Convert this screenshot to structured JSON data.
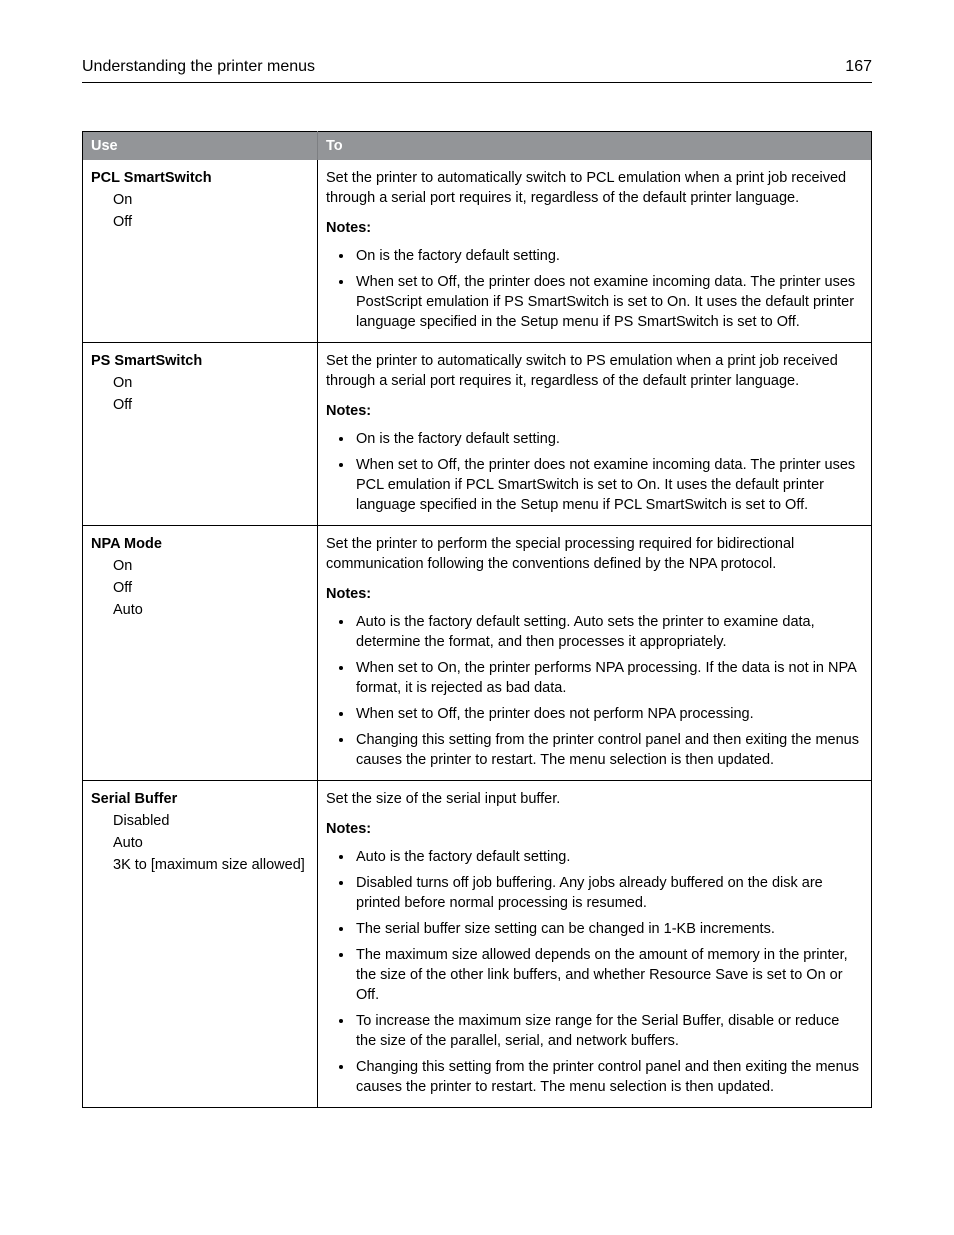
{
  "header": {
    "title": "Understanding the printer menus",
    "page_number": "167"
  },
  "table": {
    "columns": {
      "use": "Use",
      "to": "To"
    },
    "rows": [
      {
        "title": "PCL SmartSwitch",
        "options": [
          "On",
          "Off"
        ],
        "description": "Set the printer to automatically switch to PCL emulation when a print job received through a serial port requires it, regardless of the default printer language.",
        "notes_label": "Notes:",
        "notes": [
          "On is the factory default setting.",
          "When set to Off, the printer does not examine incoming data. The printer uses PostScript emulation if PS SmartSwitch is set to On. It uses the default printer language specified in the Setup menu if PS SmartSwitch is set to Off."
        ]
      },
      {
        "title": "PS SmartSwitch",
        "options": [
          "On",
          "Off"
        ],
        "description": "Set the printer to automatically switch to PS emulation when a print job received through a serial port requires it, regardless of the default printer language.",
        "notes_label": "Notes:",
        "notes": [
          "On is the factory default setting.",
          "When set to Off, the printer does not examine incoming data. The printer uses PCL emulation if PCL SmartSwitch is set to On. It uses the default printer language specified in the Setup menu if PCL SmartSwitch is set to Off."
        ]
      },
      {
        "title": "NPA Mode",
        "options": [
          "On",
          "Off",
          "Auto"
        ],
        "description": "Set the printer to perform the special processing required for bidirectional communication following the conventions defined by the NPA protocol.",
        "notes_label": "Notes:",
        "notes": [
          "Auto is the factory default setting. Auto sets the printer to examine data, determine the format, and then processes it appropriately.",
          "When set to On, the printer performs NPA processing. If the data is not in NPA format, it is rejected as bad data.",
          "When set to Off, the printer does not perform NPA processing.",
          "Changing this setting from the printer control panel and then exiting the menus causes the printer to restart. The menu selection is then updated."
        ]
      },
      {
        "title": "Serial Buffer",
        "options": [
          "Disabled",
          "Auto",
          "3K to [maximum size allowed]"
        ],
        "description": "Set the size of the serial input buffer.",
        "notes_label": "Notes:",
        "notes": [
          "Auto is the factory default setting.",
          "Disabled turns off job buffering. Any jobs already buffered on the disk are printed before normal processing is resumed.",
          "The serial buffer size setting can be changed in 1‑KB increments.",
          "The maximum size allowed depends on the amount of memory in the printer, the size of the other link buffers, and whether Resource Save is set to On or Off.",
          "To increase the maximum size range for the Serial Buffer, disable or reduce the size of the parallel, serial, and network buffers.",
          "Changing this setting from the printer control panel and then exiting the menus causes the printer to restart. The menu selection is then updated."
        ]
      }
    ]
  }
}
